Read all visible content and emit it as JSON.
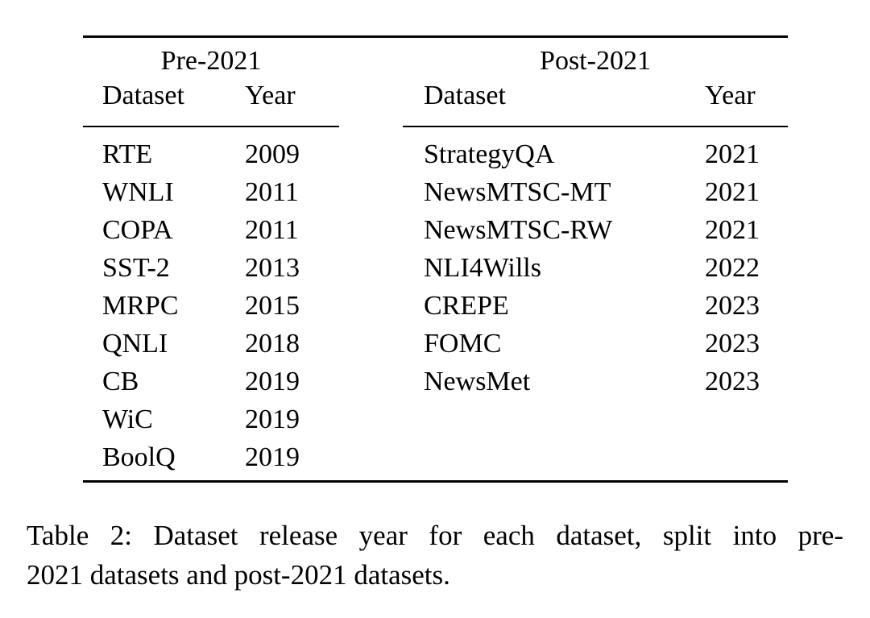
{
  "page": {
    "background_color": "#ffffff",
    "text_color": "#000000"
  },
  "table": {
    "groups": [
      {
        "title": "Pre-2021",
        "columns": {
          "dataset": "Dataset",
          "year": "Year"
        },
        "rows": [
          {
            "dataset": "RTE",
            "year": "2009"
          },
          {
            "dataset": "WNLI",
            "year": "2011"
          },
          {
            "dataset": "COPA",
            "year": "2011"
          },
          {
            "dataset": "SST-2",
            "year": "2013"
          },
          {
            "dataset": "MRPC",
            "year": "2015"
          },
          {
            "dataset": "QNLI",
            "year": "2018"
          },
          {
            "dataset": "CB",
            "year": "2019"
          },
          {
            "dataset": "WiC",
            "year": "2019"
          },
          {
            "dataset": "BoolQ",
            "year": "2019"
          }
        ]
      },
      {
        "title": "Post-2021",
        "columns": {
          "dataset": "Dataset",
          "year": "Year"
        },
        "rows": [
          {
            "dataset": "StrategyQA",
            "year": "2021"
          },
          {
            "dataset": "NewsMTSC-MT",
            "year": "2021"
          },
          {
            "dataset": "NewsMTSC-RW",
            "year": "2021"
          },
          {
            "dataset": "NLI4Wills",
            "year": "2022"
          },
          {
            "dataset": "CREPE",
            "year": "2023"
          },
          {
            "dataset": "FOMC",
            "year": "2023"
          },
          {
            "dataset": "NewsMet",
            "year": "2023"
          }
        ]
      }
    ]
  },
  "caption": {
    "line1": "Table 2: Dataset release year for each dataset, split into pre-",
    "line2": "2021 datasets and post-2021 datasets."
  }
}
